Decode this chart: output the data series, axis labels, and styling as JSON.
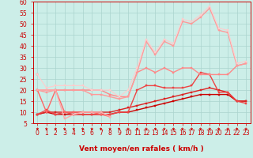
{
  "background_color": "#cceee8",
  "grid_color": "#aad4ce",
  "xlabel": "Vent moyen/en rafales ( km/h )",
  "xlim": [
    -0.5,
    23.5
  ],
  "ylim": [
    5,
    60
  ],
  "yticks": [
    5,
    10,
    15,
    20,
    25,
    30,
    35,
    40,
    45,
    50,
    55,
    60
  ],
  "xticks": [
    0,
    1,
    2,
    3,
    4,
    5,
    6,
    7,
    8,
    9,
    10,
    11,
    12,
    13,
    14,
    15,
    16,
    17,
    18,
    19,
    20,
    21,
    22,
    23
  ],
  "lines": [
    {
      "x": [
        0,
        1,
        2,
        3,
        4,
        5,
        6,
        7,
        8,
        9,
        10,
        11,
        12,
        13,
        14,
        15,
        16,
        17,
        18,
        19,
        20,
        21,
        22,
        23
      ],
      "y": [
        9,
        10,
        9,
        9,
        9,
        9,
        9,
        9,
        9,
        10,
        10,
        11,
        12,
        13,
        14,
        15,
        16,
        17,
        18,
        18,
        18,
        18,
        15,
        15
      ],
      "color": "#cc0000",
      "lw": 1.0,
      "marker": "s",
      "ms": 1.8
    },
    {
      "x": [
        0,
        1,
        2,
        3,
        4,
        5,
        6,
        7,
        8,
        9,
        10,
        11,
        12,
        13,
        14,
        15,
        16,
        17,
        18,
        19,
        20,
        21,
        22,
        23
      ],
      "y": [
        9,
        10,
        10,
        10,
        10,
        10,
        10,
        10,
        10,
        11,
        12,
        13,
        14,
        15,
        16,
        17,
        18,
        19,
        20,
        21,
        20,
        19,
        15,
        15
      ],
      "color": "#dd2222",
      "lw": 1.0,
      "marker": "s",
      "ms": 1.8
    },
    {
      "x": [
        0,
        1,
        2,
        3,
        4,
        5,
        6,
        7,
        8,
        9,
        10,
        11,
        12,
        13,
        14,
        15,
        16,
        17,
        18,
        19,
        20,
        21,
        22,
        23
      ],
      "y": [
        9,
        11,
        9,
        10,
        9,
        9,
        9,
        9,
        9,
        10,
        10,
        20,
        22,
        22,
        21,
        21,
        21,
        22,
        28,
        27,
        19,
        19,
        15,
        14
      ],
      "color": "#ee4444",
      "lw": 1.0,
      "marker": "s",
      "ms": 1.8
    },
    {
      "x": [
        0,
        1,
        2,
        3,
        4,
        5,
        6,
        7,
        8,
        9,
        10,
        11,
        12,
        13,
        14,
        15,
        16,
        17,
        18,
        19,
        20,
        21,
        22,
        23
      ],
      "y": [
        20,
        20,
        20,
        20,
        20,
        20,
        20,
        20,
        18,
        17,
        17,
        28,
        30,
        28,
        30,
        28,
        30,
        30,
        27,
        27,
        27,
        27,
        31,
        32
      ],
      "color": "#ff8888",
      "lw": 1.0,
      "marker": "s",
      "ms": 1.8
    },
    {
      "x": [
        0,
        1,
        2,
        3,
        4,
        5,
        6,
        7,
        8,
        9,
        10,
        11,
        12,
        13,
        14,
        15,
        16,
        17,
        18,
        19,
        20,
        21,
        22,
        23
      ],
      "y": [
        20,
        19,
        20,
        20,
        20,
        20,
        18,
        18,
        17,
        16,
        17,
        28,
        42,
        36,
        42,
        40,
        51,
        50,
        53,
        57,
        47,
        46,
        31,
        32
      ],
      "color": "#ff9999",
      "lw": 1.0,
      "marker": "s",
      "ms": 1.8
    },
    {
      "x": [
        0,
        1,
        2,
        3,
        4,
        5,
        6,
        7,
        8,
        9,
        10,
        11,
        12,
        13,
        14,
        15,
        16,
        17,
        18,
        19,
        20,
        21,
        22,
        23
      ],
      "y": [
        27,
        null,
        null,
        null,
        null,
        null,
        null,
        null,
        null,
        null,
        null,
        null,
        null,
        null,
        null,
        null,
        null,
        null,
        null,
        null,
        null,
        null,
        null,
        null
      ],
      "color": "#ff6666",
      "lw": 1.0,
      "marker": "s",
      "ms": 1.8
    },
    {
      "x": [
        0,
        1,
        2,
        3,
        4,
        5,
        6,
        7,
        8,
        9,
        10,
        11,
        12,
        13,
        14,
        15,
        16,
        17,
        18,
        19,
        20,
        21,
        22,
        23
      ],
      "y": [
        27,
        21,
        22,
        22,
        22,
        22,
        20,
        20,
        20,
        17,
        20,
        30,
        43,
        37,
        43,
        41,
        52,
        51,
        54,
        58,
        48,
        47,
        32,
        33
      ],
      "color": "#ffcccc",
      "lw": 0.8,
      "marker": "s",
      "ms": 1.5
    },
    {
      "x": [
        0,
        1,
        2,
        3,
        4,
        5,
        6,
        7,
        8,
        9,
        10,
        11,
        12,
        13,
        14,
        15,
        16,
        17,
        18,
        19,
        20,
        21,
        22,
        23
      ],
      "y": [
        20,
        10,
        20,
        10,
        10,
        10,
        10,
        9,
        8,
        null,
        null,
        null,
        null,
        null,
        null,
        null,
        null,
        null,
        null,
        null,
        null,
        null,
        null,
        null
      ],
      "color": "#ff6666",
      "lw": 1.0,
      "marker": "s",
      "ms": 1.8
    },
    {
      "x": [
        0,
        1,
        2,
        3,
        4,
        5,
        6,
        7,
        8,
        9,
        10,
        11,
        12,
        13,
        14,
        15,
        16,
        17,
        18,
        19,
        20,
        21,
        22,
        23
      ],
      "y": [
        20,
        20,
        20,
        7,
        9,
        10,
        10,
        10,
        8,
        null,
        null,
        null,
        null,
        null,
        null,
        null,
        null,
        null,
        null,
        null,
        null,
        null,
        null,
        null
      ],
      "color": "#ffaaaa",
      "lw": 1.0,
      "marker": "s",
      "ms": 1.8
    }
  ],
  "arrow_color": "#cc0000",
  "xlabel_fontsize": 6.5,
  "tick_fontsize": 5.5,
  "tick_color": "#cc0000"
}
